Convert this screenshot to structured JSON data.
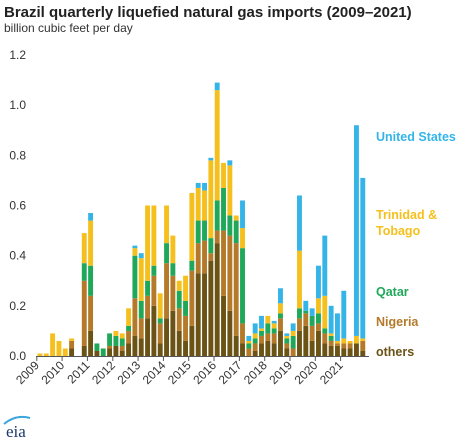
{
  "chart_data": {
    "type": "bar",
    "stacked": true,
    "title": "Brazil quarterly liquefied natural gas imports (2009–2021)",
    "subtitle": "billion cubic feet per day",
    "ylim": [
      0,
      1.2
    ],
    "yticks": [
      "0.0",
      "0.2",
      "0.4",
      "0.6",
      "0.8",
      "1.0",
      "1.2"
    ],
    "ytick_values": [
      0,
      0.2,
      0.4,
      0.6,
      0.8,
      1.0,
      1.2
    ],
    "years": [
      "2009",
      "2010",
      "2011",
      "2012",
      "2013",
      "2014",
      "2015",
      "2016",
      "2017",
      "2018",
      "2019",
      "2020",
      "2021"
    ],
    "quarters_per_year": 4,
    "grid": false,
    "legend_placement": "right",
    "series": [
      {
        "name": "others",
        "color": "#6b5215",
        "values": [
          0,
          0,
          0,
          0,
          0,
          0.03,
          0,
          0.04,
          0.1,
          0.02,
          0,
          0.03,
          0.04,
          0.02,
          0.05,
          0.08,
          0.07,
          0.15,
          0.2,
          0.05,
          0.15,
          0.18,
          0.1,
          0.06,
          0.12,
          0.33,
          0.33,
          0.38,
          0.45,
          0.24,
          0.18,
          0.08,
          0.05,
          0,
          0.02,
          0.05,
          0.06,
          0.05,
          0.1,
          0.03,
          0,
          0.1,
          0.12,
          0.06,
          0.1,
          0.05,
          0.04,
          0.04,
          0.03,
          0.03,
          0.05,
          0.02
        ]
      },
      {
        "name": "Nigeria",
        "color": "#b47a2a",
        "values": [
          0,
          0,
          0,
          0,
          0,
          0.03,
          0,
          0.26,
          0.14,
          0,
          0,
          0.01,
          0,
          0.02,
          0.05,
          0.15,
          0.08,
          0.09,
          0.12,
          0.08,
          0.22,
          0.14,
          0.09,
          0.1,
          0.22,
          0.12,
          0.13,
          0.03,
          0.05,
          0.26,
          0.3,
          0.37,
          0.08,
          0.03,
          0.03,
          0.03,
          0.03,
          0.04,
          0.05,
          0.02,
          0.03,
          0.05,
          0.05,
          0.06,
          0.03,
          0.04,
          0.02,
          0.01,
          0.02,
          0.02,
          0,
          0.04
        ]
      },
      {
        "name": "Qatar",
        "color": "#1fa85a",
        "values": [
          0,
          0,
          0,
          0,
          0,
          0,
          0,
          0.07,
          0.12,
          0.03,
          0.03,
          0.05,
          0.04,
          0.03,
          0.02,
          0.17,
          0.07,
          0.06,
          0.04,
          0.02,
          0.08,
          0.05,
          0.07,
          0.06,
          0.04,
          0.09,
          0.08,
          0.06,
          0.12,
          0.17,
          0.08,
          0.09,
          0.3,
          0.02,
          0.02,
          0.02,
          0.04,
          0.02,
          0.02,
          0.02,
          0.05,
          0.04,
          0.01,
          0.04,
          0.04,
          0.02,
          0.02,
          0,
          0,
          0,
          0,
          0
        ]
      },
      {
        "name": "Trinidad & Tobago",
        "color": "#f5c01d",
        "values": [
          0.01,
          0.01,
          0.09,
          0.06,
          0.03,
          0.01,
          0,
          0.12,
          0.18,
          0,
          0,
          0,
          0.02,
          0.02,
          0.07,
          0.03,
          0.17,
          0.3,
          0.24,
          0.1,
          0.15,
          0.11,
          0.04,
          0.1,
          0.27,
          0.13,
          0.12,
          0.31,
          0.44,
          0.1,
          0.2,
          0.02,
          0.08,
          0.01,
          0.02,
          0.01,
          0.03,
          0.02,
          0.04,
          0.01,
          0.02,
          0.23,
          0,
          0,
          0.06,
          0.13,
          0.01,
          0.01,
          0.02,
          0.01,
          0.03,
          0.01
        ]
      },
      {
        "name": "United States",
        "color": "#35b4e8",
        "values": [
          0,
          0,
          0,
          0,
          0,
          0,
          0,
          0,
          0.03,
          0,
          0,
          0,
          0,
          0,
          0,
          0.01,
          0.02,
          0,
          0,
          0,
          0,
          0,
          0,
          0,
          0,
          0.02,
          0.03,
          0.01,
          0.03,
          0,
          0.02,
          0,
          0.11,
          0.02,
          0.04,
          0.05,
          0,
          0.01,
          0.06,
          0.01,
          0.03,
          0.22,
          0.04,
          0.03,
          0.13,
          0.24,
          0.11,
          0.11,
          0.19,
          0,
          0.84,
          0.64
        ]
      }
    ]
  },
  "legend": [
    {
      "lines": [
        "United States"
      ],
      "color": "#35b4e8"
    },
    {
      "lines": [
        "Trinidad &",
        "Tobago"
      ],
      "color": "#f5c01d"
    },
    {
      "lines": [
        "Qatar"
      ],
      "color": "#1fa85a"
    },
    {
      "lines": [
        "Nigeria"
      ],
      "color": "#b47a2a"
    },
    {
      "lines": [
        "others"
      ],
      "color": "#6b5215"
    }
  ],
  "logo": {
    "text": "eia",
    "color": "#1a3a6b",
    "accent": "#3aa6dd"
  }
}
